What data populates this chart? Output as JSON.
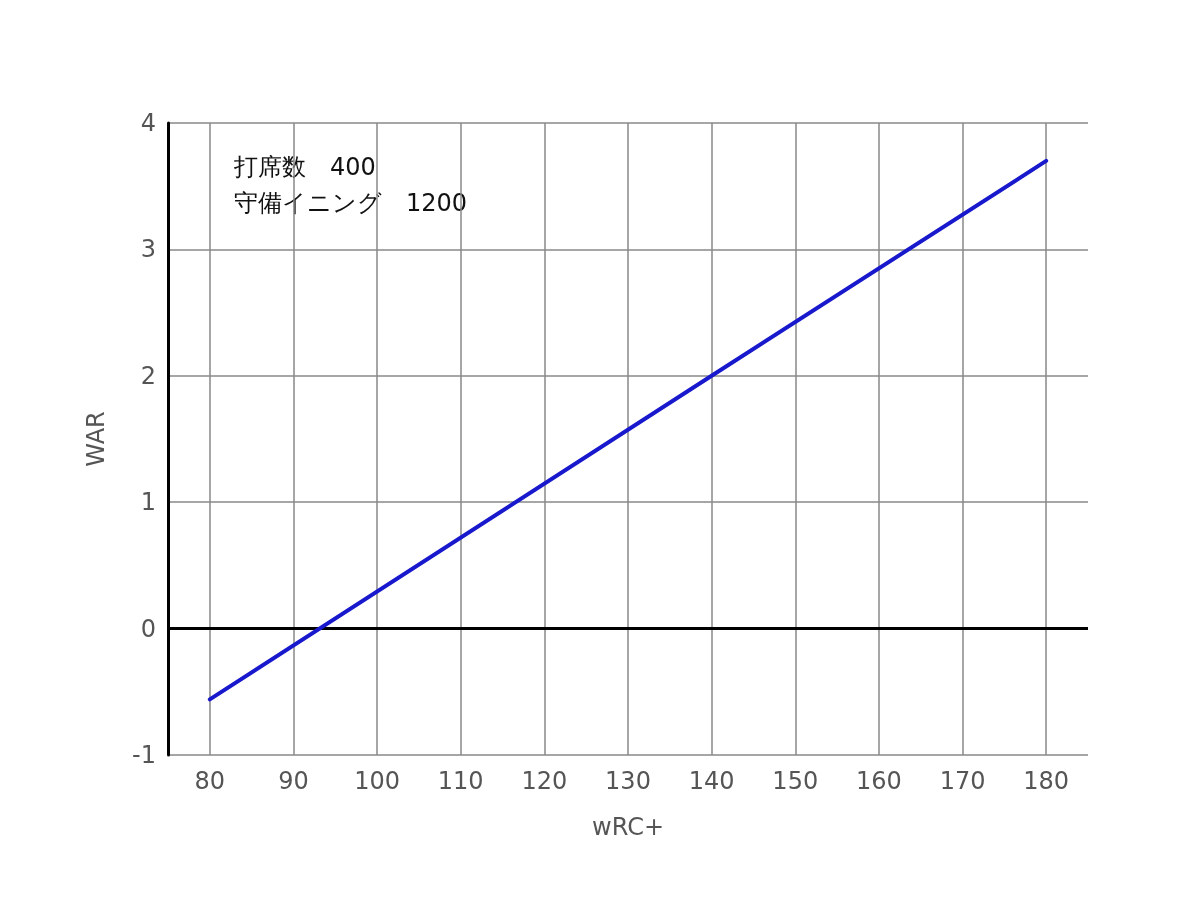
{
  "chart_data": {
    "type": "line",
    "xlabel": "wRC+",
    "ylabel": "WAR",
    "x": [
      80,
      140,
      180
    ],
    "series": [
      {
        "color": "#1818cc",
        "values": [
          -0.56,
          2.0,
          3.7
        ]
      }
    ],
    "xlim": [
      75,
      185
    ],
    "xticks": [
      80,
      90,
      100,
      110,
      120,
      130,
      140,
      150,
      160,
      170,
      180
    ],
    "ylim": [
      -1,
      4
    ],
    "yticks": [
      -1,
      0,
      1,
      2,
      3,
      4
    ],
    "grid": true,
    "marker": "none",
    "line_style": "solid",
    "ref_lines": [
      {
        "axis": "y",
        "value": 0,
        "color": "#000000"
      }
    ],
    "annotations": [
      "打席数　400",
      "守備イニング　1200"
    ]
  }
}
